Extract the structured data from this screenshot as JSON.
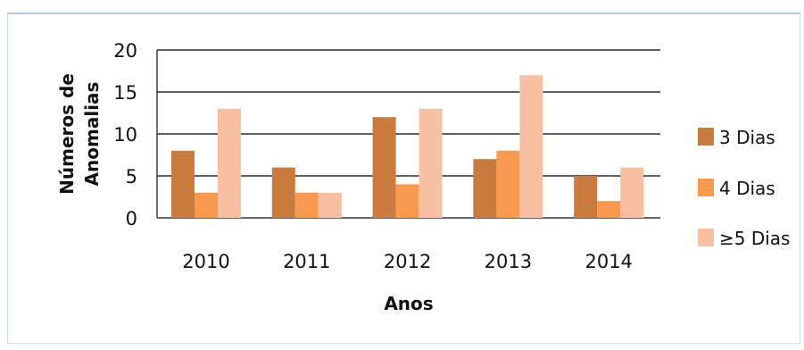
{
  "chart_data": {
    "type": "bar",
    "categories": [
      "2010",
      "2011",
      "2012",
      "2013",
      "2014"
    ],
    "series": [
      {
        "name": "3 Dias",
        "values": [
          8,
          6,
          12,
          7,
          5
        ]
      },
      {
        "name": "4 Dias",
        "values": [
          3,
          3,
          4,
          8,
          2
        ]
      },
      {
        "name": "≥5 Dias",
        "values": [
          13,
          3,
          13,
          17,
          6
        ]
      }
    ],
    "xlabel": "Anos",
    "ylabel": [
      "Números de",
      "Anomalias"
    ],
    "ylim": [
      0,
      20
    ],
    "yticks": [
      "0",
      "5",
      "10",
      "15",
      "20"
    ],
    "grid": true,
    "legend": "right",
    "colors": [
      "#c87a3f",
      "#f59a4f",
      "#f7c0a3"
    ]
  }
}
